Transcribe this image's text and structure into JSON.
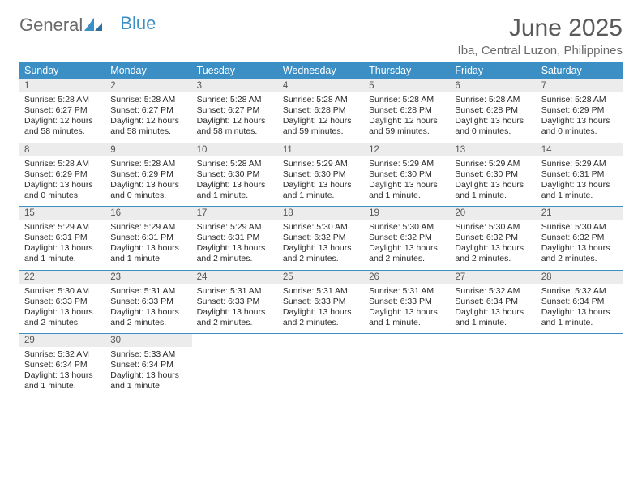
{
  "brand": {
    "general": "General",
    "blue": "Blue"
  },
  "title": "June 2025",
  "location": "Iba, Central Luzon, Philippines",
  "headers": [
    "Sunday",
    "Monday",
    "Tuesday",
    "Wednesday",
    "Thursday",
    "Friday",
    "Saturday"
  ],
  "colors": {
    "accent": "#3b8fc4",
    "header_bg": "#3b8fc4",
    "header_fg": "#ffffff",
    "daynum_bg": "#ececec",
    "text": "#333333"
  },
  "weeks": [
    [
      {
        "day": "1",
        "sunrise": "Sunrise: 5:28 AM",
        "sunset": "Sunset: 6:27 PM",
        "daylight": "Daylight: 12 hours and 58 minutes."
      },
      {
        "day": "2",
        "sunrise": "Sunrise: 5:28 AM",
        "sunset": "Sunset: 6:27 PM",
        "daylight": "Daylight: 12 hours and 58 minutes."
      },
      {
        "day": "3",
        "sunrise": "Sunrise: 5:28 AM",
        "sunset": "Sunset: 6:27 PM",
        "daylight": "Daylight: 12 hours and 58 minutes."
      },
      {
        "day": "4",
        "sunrise": "Sunrise: 5:28 AM",
        "sunset": "Sunset: 6:28 PM",
        "daylight": "Daylight: 12 hours and 59 minutes."
      },
      {
        "day": "5",
        "sunrise": "Sunrise: 5:28 AM",
        "sunset": "Sunset: 6:28 PM",
        "daylight": "Daylight: 12 hours and 59 minutes."
      },
      {
        "day": "6",
        "sunrise": "Sunrise: 5:28 AM",
        "sunset": "Sunset: 6:28 PM",
        "daylight": "Daylight: 13 hours and 0 minutes."
      },
      {
        "day": "7",
        "sunrise": "Sunrise: 5:28 AM",
        "sunset": "Sunset: 6:29 PM",
        "daylight": "Daylight: 13 hours and 0 minutes."
      }
    ],
    [
      {
        "day": "8",
        "sunrise": "Sunrise: 5:28 AM",
        "sunset": "Sunset: 6:29 PM",
        "daylight": "Daylight: 13 hours and 0 minutes."
      },
      {
        "day": "9",
        "sunrise": "Sunrise: 5:28 AM",
        "sunset": "Sunset: 6:29 PM",
        "daylight": "Daylight: 13 hours and 0 minutes."
      },
      {
        "day": "10",
        "sunrise": "Sunrise: 5:28 AM",
        "sunset": "Sunset: 6:30 PM",
        "daylight": "Daylight: 13 hours and 1 minute."
      },
      {
        "day": "11",
        "sunrise": "Sunrise: 5:29 AM",
        "sunset": "Sunset: 6:30 PM",
        "daylight": "Daylight: 13 hours and 1 minute."
      },
      {
        "day": "12",
        "sunrise": "Sunrise: 5:29 AM",
        "sunset": "Sunset: 6:30 PM",
        "daylight": "Daylight: 13 hours and 1 minute."
      },
      {
        "day": "13",
        "sunrise": "Sunrise: 5:29 AM",
        "sunset": "Sunset: 6:30 PM",
        "daylight": "Daylight: 13 hours and 1 minute."
      },
      {
        "day": "14",
        "sunrise": "Sunrise: 5:29 AM",
        "sunset": "Sunset: 6:31 PM",
        "daylight": "Daylight: 13 hours and 1 minute."
      }
    ],
    [
      {
        "day": "15",
        "sunrise": "Sunrise: 5:29 AM",
        "sunset": "Sunset: 6:31 PM",
        "daylight": "Daylight: 13 hours and 1 minute."
      },
      {
        "day": "16",
        "sunrise": "Sunrise: 5:29 AM",
        "sunset": "Sunset: 6:31 PM",
        "daylight": "Daylight: 13 hours and 1 minute."
      },
      {
        "day": "17",
        "sunrise": "Sunrise: 5:29 AM",
        "sunset": "Sunset: 6:31 PM",
        "daylight": "Daylight: 13 hours and 2 minutes."
      },
      {
        "day": "18",
        "sunrise": "Sunrise: 5:30 AM",
        "sunset": "Sunset: 6:32 PM",
        "daylight": "Daylight: 13 hours and 2 minutes."
      },
      {
        "day": "19",
        "sunrise": "Sunrise: 5:30 AM",
        "sunset": "Sunset: 6:32 PM",
        "daylight": "Daylight: 13 hours and 2 minutes."
      },
      {
        "day": "20",
        "sunrise": "Sunrise: 5:30 AM",
        "sunset": "Sunset: 6:32 PM",
        "daylight": "Daylight: 13 hours and 2 minutes."
      },
      {
        "day": "21",
        "sunrise": "Sunrise: 5:30 AM",
        "sunset": "Sunset: 6:32 PM",
        "daylight": "Daylight: 13 hours and 2 minutes."
      }
    ],
    [
      {
        "day": "22",
        "sunrise": "Sunrise: 5:30 AM",
        "sunset": "Sunset: 6:33 PM",
        "daylight": "Daylight: 13 hours and 2 minutes."
      },
      {
        "day": "23",
        "sunrise": "Sunrise: 5:31 AM",
        "sunset": "Sunset: 6:33 PM",
        "daylight": "Daylight: 13 hours and 2 minutes."
      },
      {
        "day": "24",
        "sunrise": "Sunrise: 5:31 AM",
        "sunset": "Sunset: 6:33 PM",
        "daylight": "Daylight: 13 hours and 2 minutes."
      },
      {
        "day": "25",
        "sunrise": "Sunrise: 5:31 AM",
        "sunset": "Sunset: 6:33 PM",
        "daylight": "Daylight: 13 hours and 2 minutes."
      },
      {
        "day": "26",
        "sunrise": "Sunrise: 5:31 AM",
        "sunset": "Sunset: 6:33 PM",
        "daylight": "Daylight: 13 hours and 1 minute."
      },
      {
        "day": "27",
        "sunrise": "Sunrise: 5:32 AM",
        "sunset": "Sunset: 6:34 PM",
        "daylight": "Daylight: 13 hours and 1 minute."
      },
      {
        "day": "28",
        "sunrise": "Sunrise: 5:32 AM",
        "sunset": "Sunset: 6:34 PM",
        "daylight": "Daylight: 13 hours and 1 minute."
      }
    ],
    [
      {
        "day": "29",
        "sunrise": "Sunrise: 5:32 AM",
        "sunset": "Sunset: 6:34 PM",
        "daylight": "Daylight: 13 hours and 1 minute."
      },
      {
        "day": "30",
        "sunrise": "Sunrise: 5:33 AM",
        "sunset": "Sunset: 6:34 PM",
        "daylight": "Daylight: 13 hours and 1 minute."
      },
      null,
      null,
      null,
      null,
      null
    ]
  ]
}
